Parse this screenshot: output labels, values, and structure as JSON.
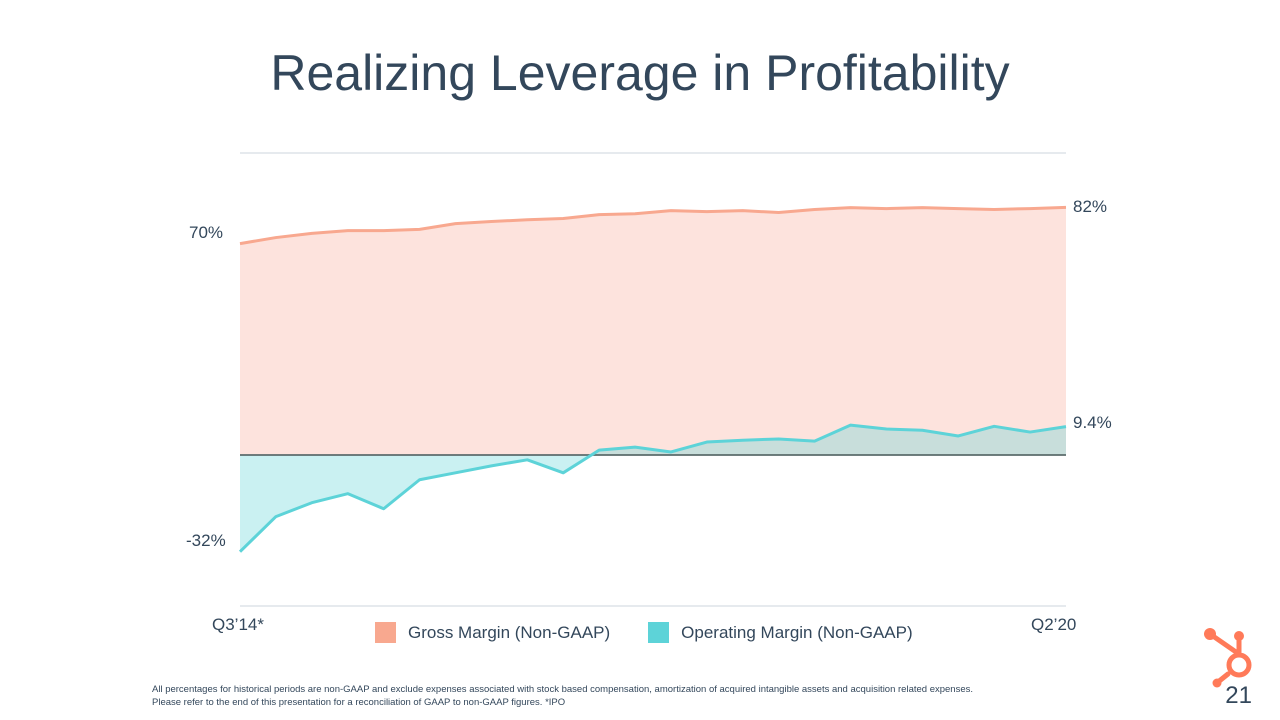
{
  "title": "Realizing Leverage in Profitability",
  "chart_data": {
    "type": "area",
    "title": "Realizing Leverage in Profitability",
    "x_start_label": "Q3’14*",
    "x_end_label": "Q2’20",
    "periods": 24,
    "ylim": [
      -50,
      100
    ],
    "gridlines": [
      100,
      50,
      -50
    ],
    "zero_line": true,
    "series": [
      {
        "name": "Gross Margin (Non-GAAP)",
        "color": "#f8a88f",
        "fill": "#fde3dd",
        "values": [
          70,
          72,
          73.4,
          74.3,
          74.3,
          74.7,
          76.6,
          77.3,
          77.9,
          78.3,
          79.6,
          79.9,
          80.9,
          80.6,
          80.9,
          80.3,
          81.3,
          81.9,
          81.6,
          81.9,
          81.6,
          81.3,
          81.6,
          82
        ]
      },
      {
        "name": "Operating Margin (Non-GAAP)",
        "color": "#5dd3d8",
        "fill": "#5ed3d8",
        "values": [
          -32,
          -20.4,
          -15.8,
          -12.8,
          -17.8,
          -8.2,
          -5.9,
          -3.6,
          -1.6,
          -5.9,
          1.6,
          2.6,
          1.0,
          4.3,
          4.9,
          5.3,
          4.6,
          9.9,
          8.6,
          8.2,
          6.3,
          9.5,
          7.6,
          9.4
        ]
      }
    ],
    "annotations": {
      "gross_start": "70%",
      "gross_end": "82%",
      "op_start": "-32%",
      "op_end": "9.4%"
    },
    "legend_position": "bottom"
  },
  "footnote": [
    "All percentages for historical periods are non-GAAP and exclude expenses associated with stock based compensation, amortization of acquired intangible assets and acquisition related expenses.",
    "Please refer to the end of this presentation for a reconciliation of GAAP to non-GAAP figures. *IPO"
  ],
  "page_number": "21",
  "logo": "hubspot-sprocket",
  "brand_color": "#ff7a59"
}
